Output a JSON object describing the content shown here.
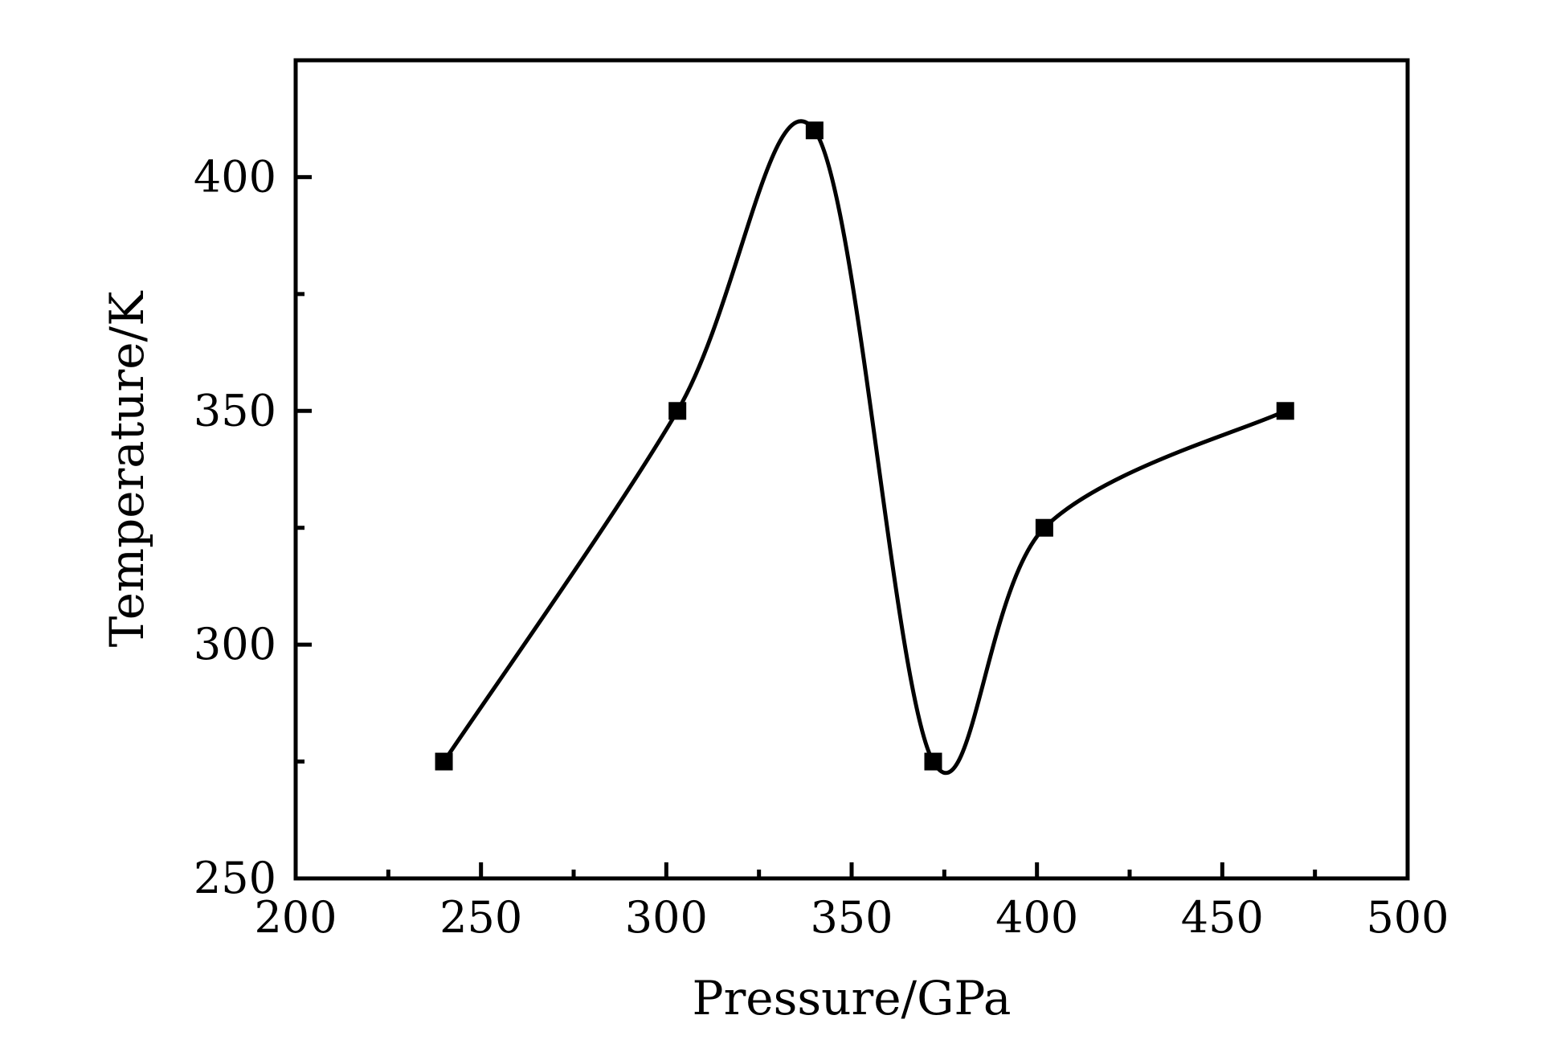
{
  "chart_data": {
    "type": "line",
    "xlabel": "Pressure/GPa",
    "ylabel": "Temperature/K",
    "xlim": [
      200,
      500
    ],
    "ylim": [
      250,
      425
    ],
    "x_ticks": [
      200,
      250,
      300,
      350,
      400,
      450,
      500
    ],
    "y_ticks": [
      250,
      300,
      350,
      400
    ],
    "x_minor_ticks": [
      225,
      275,
      325,
      375,
      425,
      475
    ],
    "y_minor_ticks": [
      275,
      325,
      375
    ],
    "marker": "square",
    "line_style": "smooth",
    "color": "#000000",
    "grid": false,
    "series": [
      {
        "x": [
          240,
          303,
          340,
          372,
          402,
          467
        ],
        "y": [
          275,
          350,
          410,
          275,
          325,
          350
        ]
      }
    ]
  }
}
